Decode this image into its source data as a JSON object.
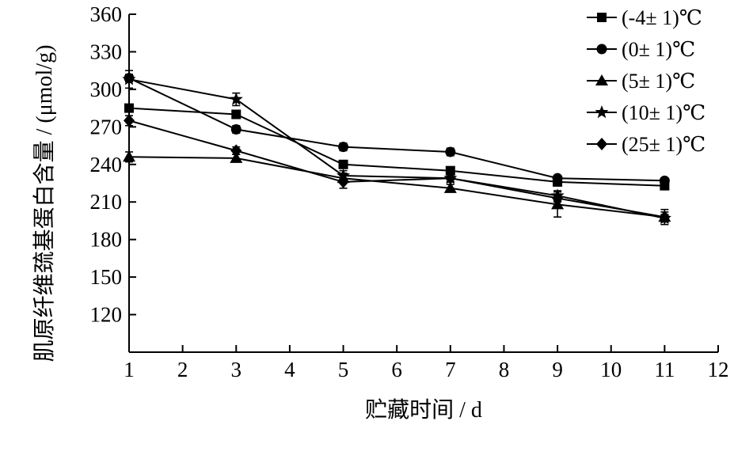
{
  "chart_data": {
    "type": "line",
    "title": "",
    "xlabel": "贮藏时间 / d",
    "ylabel": "肌原纤维巯基蛋白含量 / (μmol/g)",
    "xlim": [
      1,
      12
    ],
    "ylim": [
      90,
      360
    ],
    "xticks": [
      1,
      2,
      3,
      4,
      5,
      6,
      7,
      8,
      9,
      10,
      11,
      12
    ],
    "yticks": [
      120,
      150,
      180,
      210,
      240,
      270,
      300,
      330,
      360
    ],
    "x": [
      1,
      3,
      5,
      7,
      9,
      11
    ],
    "legend_position": "top-right",
    "grid": false,
    "series": [
      {
        "name": "(-4± 1)℃",
        "marker": "square",
        "values": [
          285,
          280,
          240,
          235,
          226,
          223
        ],
        "errors": [
          3,
          3,
          3,
          3,
          3,
          3
        ]
      },
      {
        "name": "(0± 1)℃",
        "marker": "circle",
        "values": [
          309,
          268,
          254,
          250,
          229,
          227
        ],
        "errors": [
          3,
          3,
          3,
          3,
          2,
          2
        ]
      },
      {
        "name": "(5± 1)℃",
        "marker": "triangle",
        "values": [
          246,
          245,
          229,
          221,
          208,
          198
        ],
        "errors": [
          4,
          3,
          4,
          3,
          10,
          6
        ]
      },
      {
        "name": "(10± 1)℃",
        "marker": "star",
        "values": [
          308,
          292,
          231,
          229,
          215,
          197
        ],
        "errors": [
          7,
          5,
          4,
          3,
          4,
          3
        ]
      },
      {
        "name": "(25± 1)℃",
        "marker": "diamond",
        "values": [
          275,
          251,
          226,
          229,
          213,
          198
        ],
        "errors": [
          4,
          3,
          5,
          3,
          3,
          4
        ]
      }
    ]
  }
}
